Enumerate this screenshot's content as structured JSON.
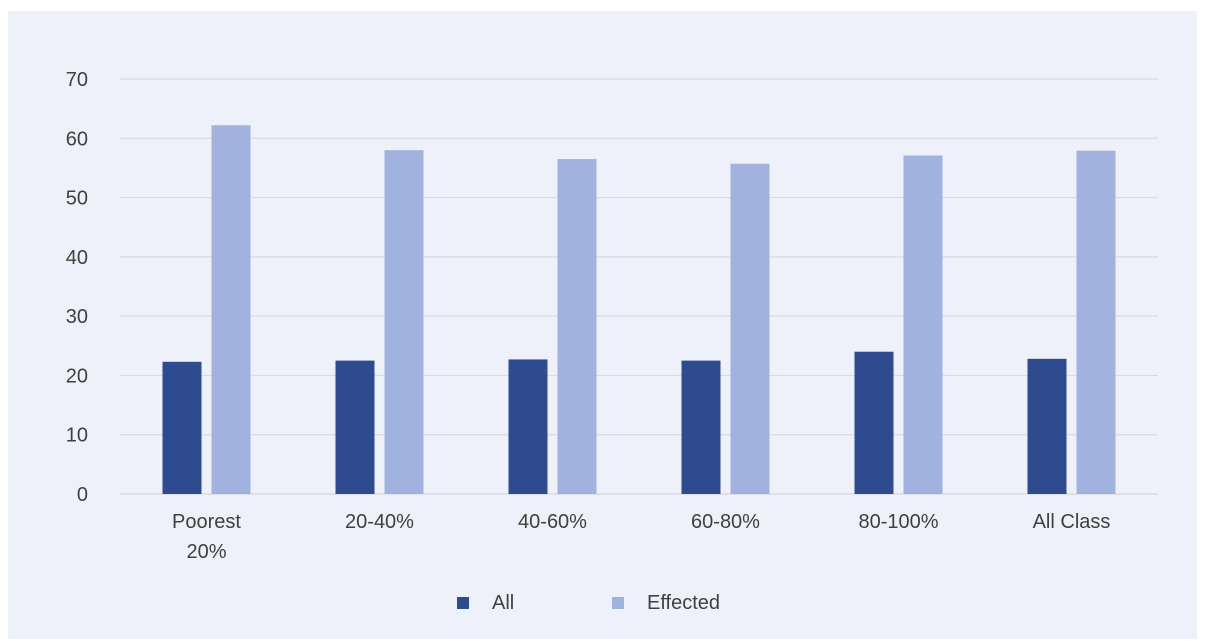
{
  "chart_data": {
    "type": "bar",
    "title": "",
    "xlabel": "",
    "ylabel": "",
    "categories": [
      [
        "Poorest",
        "20%"
      ],
      [
        "20-40%"
      ],
      [
        "40-60%"
      ],
      [
        "60-80%"
      ],
      [
        "80-100%"
      ],
      [
        "All Class"
      ]
    ],
    "series": [
      {
        "name": "All",
        "color": "#2f4b8f",
        "values": [
          22.3,
          22.5,
          22.7,
          22.5,
          24.0,
          22.8
        ]
      },
      {
        "name": "Effected",
        "color": "#a1b2de",
        "values": [
          62.2,
          58.0,
          56.5,
          55.7,
          57.1,
          57.9
        ]
      }
    ],
    "ylim": [
      0,
      70
    ],
    "yticks": [
      0,
      10,
      20,
      30,
      40,
      50,
      60,
      70
    ],
    "grid": true,
    "legend_position": "bottom"
  },
  "colors": {
    "background": "#eef1f9",
    "gridline": "#d9dbe0",
    "text": "#404040"
  }
}
